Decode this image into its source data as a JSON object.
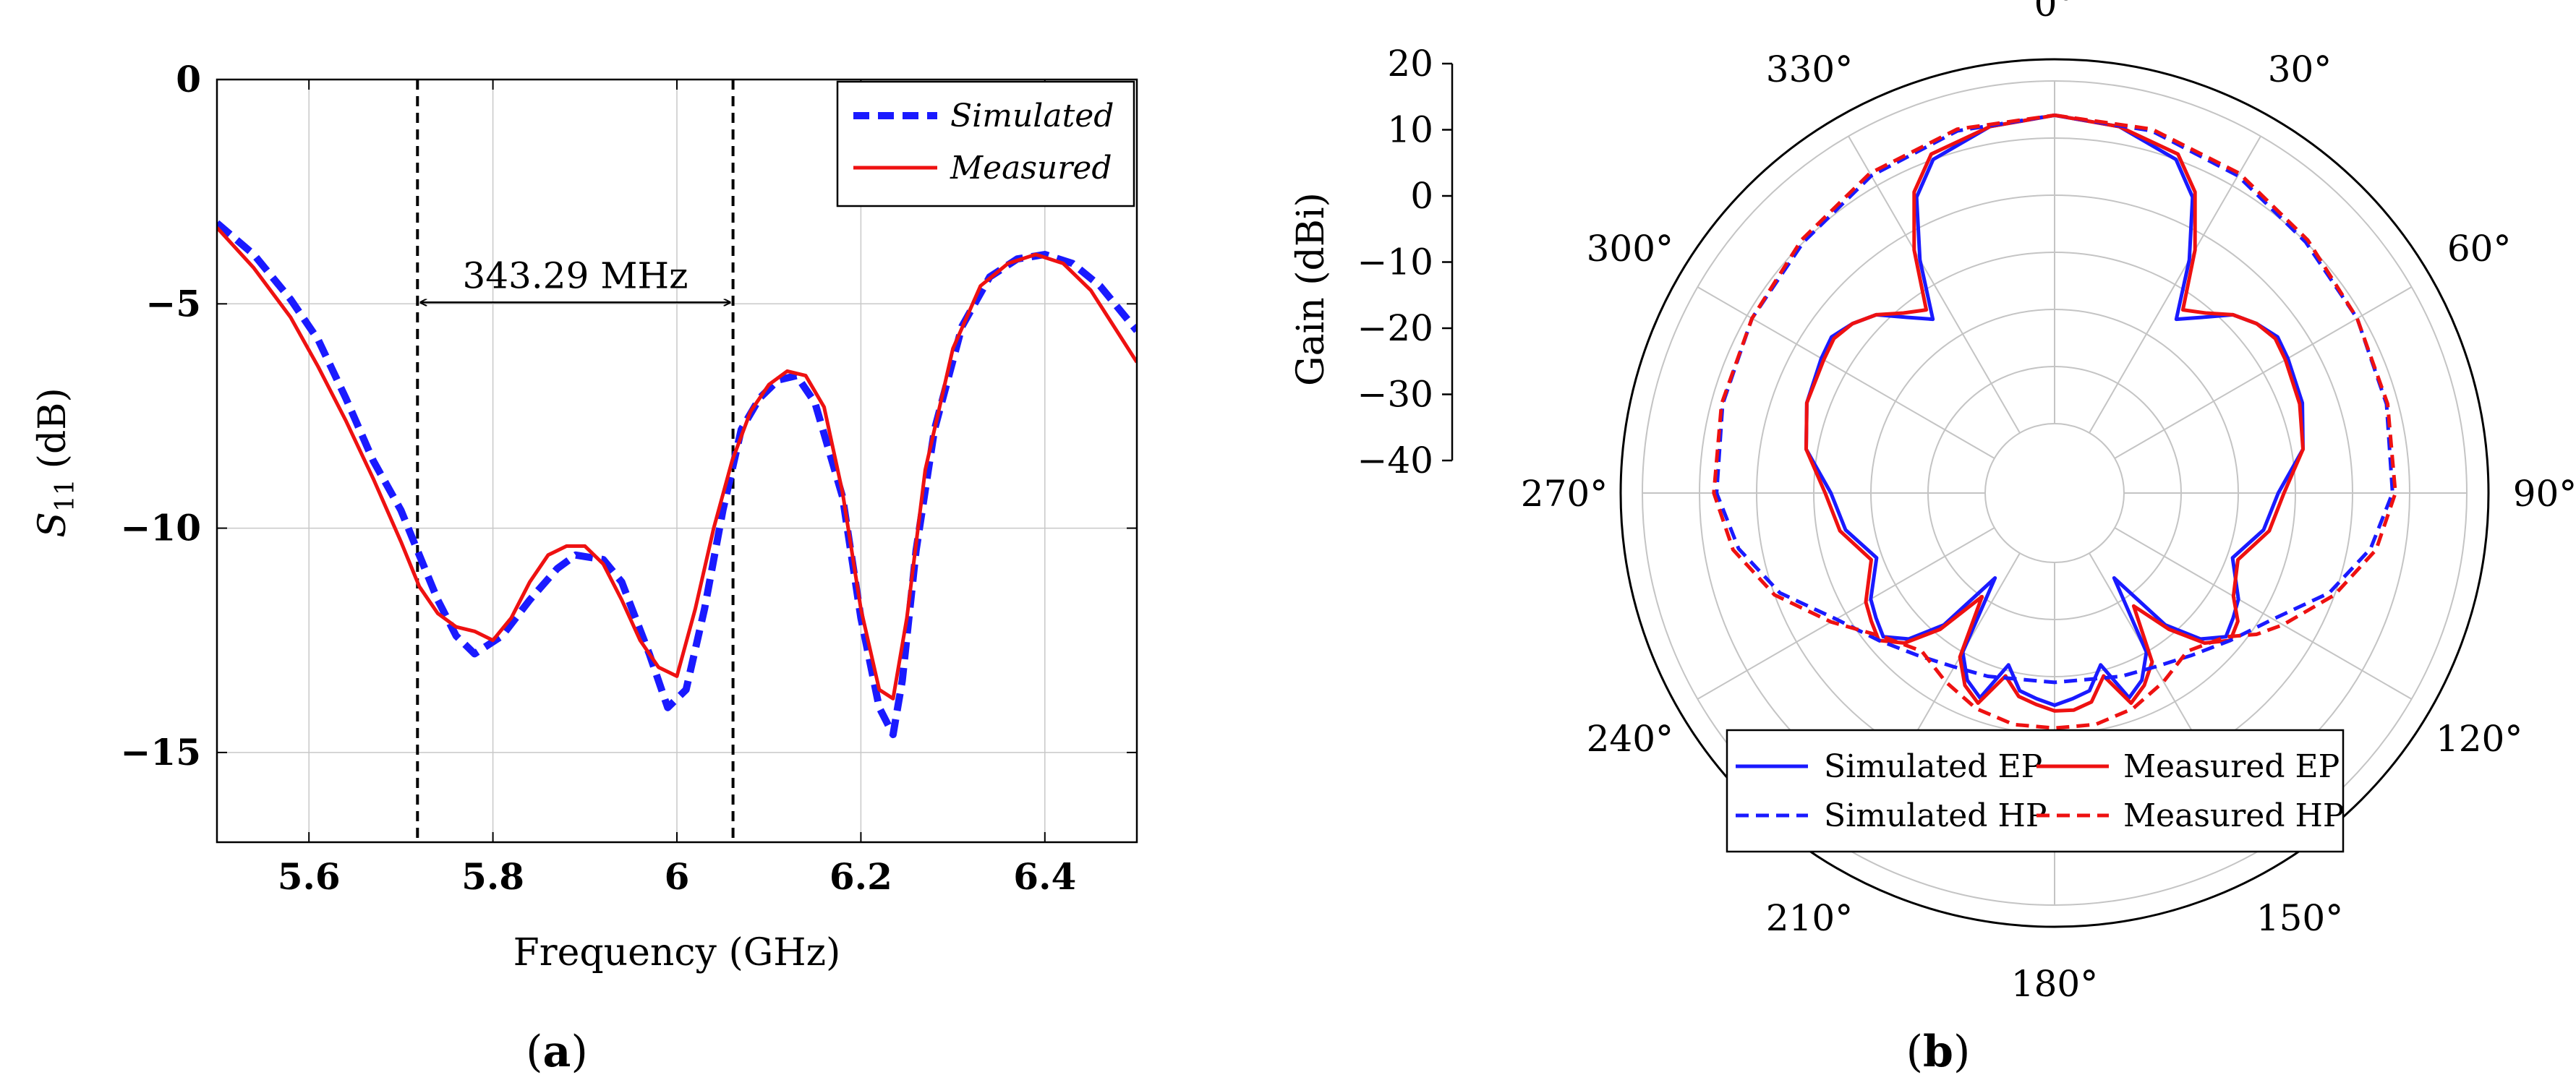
{
  "chart_data": [
    {
      "type": "line",
      "panel_label": "a",
      "xlabel": "Frequency (GHz)",
      "ylabel_main": "S",
      "ylabel_sub": "11",
      "ylabel_unit": "(dB)",
      "xlim": [
        5.5,
        6.5
      ],
      "ylim": [
        -17,
        0
      ],
      "x_ticks": [
        5.6,
        5.8,
        6,
        6.2,
        6.4
      ],
      "x_tick_labels": [
        "5.6",
        "5.8",
        "6",
        "6.2",
        "6.4"
      ],
      "y_ticks": [
        0,
        -5,
        -10,
        -15
      ],
      "y_tick_labels": [
        "0",
        "−5",
        "−10",
        "−15"
      ],
      "grid": true,
      "legend": [
        "Simulated",
        "Measured"
      ],
      "annotation": {
        "text": "343.29 MHz",
        "x_from": 5.718,
        "x_to": 6.061,
        "y": -5
      },
      "vlines": [
        5.718,
        6.061
      ],
      "series": [
        {
          "name": "Simulated",
          "style": "dashed",
          "color": "#1a1aff",
          "x": [
            5.5,
            5.54,
            5.58,
            5.61,
            5.64,
            5.67,
            5.7,
            5.72,
            5.74,
            5.76,
            5.78,
            5.81,
            5.84,
            5.87,
            5.89,
            5.92,
            5.94,
            5.97,
            5.99,
            6.01,
            6.03,
            6.05,
            6.07,
            6.09,
            6.11,
            6.13,
            6.15,
            6.18,
            6.2,
            6.22,
            6.235,
            6.245,
            6.26,
            6.28,
            6.31,
            6.34,
            6.37,
            6.4,
            6.43,
            6.46,
            6.5
          ],
          "y": [
            -3.2,
            -3.9,
            -4.9,
            -5.8,
            -7.1,
            -8.5,
            -9.6,
            -10.6,
            -11.6,
            -12.4,
            -12.8,
            -12.4,
            -11.6,
            -10.9,
            -10.6,
            -10.7,
            -11.2,
            -12.8,
            -14.0,
            -13.6,
            -11.8,
            -9.6,
            -7.8,
            -7.1,
            -6.7,
            -6.6,
            -7.2,
            -9.3,
            -12.0,
            -14.0,
            -14.6,
            -13.4,
            -10.5,
            -7.8,
            -5.5,
            -4.4,
            -4.0,
            -3.9,
            -4.1,
            -4.6,
            -5.6
          ]
        },
        {
          "name": "Measured",
          "style": "solid",
          "color": "#ee1111",
          "x": [
            5.5,
            5.54,
            5.58,
            5.61,
            5.64,
            5.67,
            5.7,
            5.72,
            5.74,
            5.76,
            5.78,
            5.8,
            5.82,
            5.84,
            5.86,
            5.88,
            5.9,
            5.92,
            5.94,
            5.96,
            5.98,
            6.0,
            6.02,
            6.04,
            6.06,
            6.08,
            6.1,
            6.12,
            6.14,
            6.16,
            6.18,
            6.2,
            6.22,
            6.235,
            6.25,
            6.27,
            6.3,
            6.33,
            6.36,
            6.39,
            6.42,
            6.45,
            6.5
          ],
          "y": [
            -3.3,
            -4.2,
            -5.3,
            -6.4,
            -7.6,
            -8.9,
            -10.3,
            -11.3,
            -11.9,
            -12.2,
            -12.3,
            -12.5,
            -12.0,
            -11.2,
            -10.6,
            -10.4,
            -10.4,
            -10.8,
            -11.6,
            -12.5,
            -13.1,
            -13.3,
            -11.8,
            -10.0,
            -8.5,
            -7.4,
            -6.8,
            -6.5,
            -6.6,
            -7.3,
            -9.2,
            -11.8,
            -13.6,
            -13.8,
            -12.0,
            -8.7,
            -6.0,
            -4.6,
            -4.1,
            -3.9,
            -4.1,
            -4.7,
            -6.3
          ]
        }
      ]
    },
    {
      "type": "polar",
      "panel_label": "b",
      "rlabel": "Gain (dBi)",
      "rlim": [
        -40,
        20
      ],
      "r_ticks": [
        20,
        10,
        0,
        -10,
        -20,
        -30,
        -40
      ],
      "r_tick_labels": [
        "20",
        "10",
        "0",
        "−10",
        "−20",
        "−30",
        "−40"
      ],
      "angle_labels": [
        "0°",
        "30°",
        "60°",
        "90°",
        "120°",
        "150°",
        "180°",
        "210°",
        "240°",
        "270°",
        "300°",
        "330°"
      ],
      "legend": [
        "Simulated EP",
        "Measured EP",
        "Simulated HP",
        "Measured HP"
      ],
      "series": [
        {
          "name": "Simulated EP",
          "style": "solid",
          "color": "#1a1aff",
          "angles": [
            0,
            10,
            20,
            25,
            30,
            35,
            40,
            45,
            50,
            55,
            60,
            70,
            80,
            90,
            100,
            110,
            120,
            125,
            130,
            135,
            140,
            145,
            150,
            155,
            160,
            165,
            170,
            175,
            180,
            185,
            190,
            195,
            200,
            205,
            210,
            215,
            220,
            225,
            230,
            235,
            240,
            250,
            260,
            270,
            280,
            290,
            300,
            305,
            310,
            315,
            320,
            325,
            330,
            335,
            340,
            350,
            360
          ],
          "gain": [
            14,
            13,
            10,
            5,
            -5,
            -15,
            -12,
            -8,
            -6,
            -4.5,
            -5,
            -6,
            -8,
            -13,
            -15,
            -19,
            -15,
            -14,
            -13,
            -16,
            -22,
            -34,
            -20,
            -16,
            -14,
            -21,
            -17,
            -16,
            -15,
            -16,
            -17,
            -21,
            -14,
            -16,
            -20,
            -34,
            -22,
            -16,
            -13,
            -14,
            -15,
            -19,
            -15,
            -13,
            -8,
            -6,
            -5,
            -4.5,
            -6,
            -8,
            -12,
            -15,
            -5,
            5,
            10,
            13,
            14
          ]
        },
        {
          "name": "Measured EP",
          "style": "solid",
          "color": "#ee1111",
          "angles": [
            0,
            10,
            20,
            25,
            30,
            35,
            40,
            45,
            50,
            55,
            60,
            70,
            80,
            90,
            100,
            110,
            120,
            125,
            130,
            135,
            140,
            145,
            150,
            155,
            160,
            165,
            170,
            175,
            180,
            185,
            190,
            195,
            200,
            205,
            210,
            215,
            220,
            225,
            230,
            235,
            240,
            250,
            260,
            270,
            280,
            290,
            300,
            305,
            310,
            315,
            320,
            325,
            330,
            335,
            340,
            350,
            360
          ],
          "gain": [
            14,
            13,
            11,
            6,
            -3,
            -13,
            -11,
            -8,
            -6,
            -5,
            -5.5,
            -6.5,
            -8,
            -12,
            -14,
            -18,
            -16,
            -13,
            -12,
            -15,
            -21,
            -28,
            -18,
            -15,
            -13,
            -19,
            -15,
            -14,
            -14,
            -15,
            -16,
            -19,
            -13,
            -15,
            -19,
            -30,
            -21,
            -15,
            -12,
            -13,
            -14,
            -18,
            -14,
            -12,
            -8,
            -6,
            -5.5,
            -5,
            -6,
            -8,
            -11,
            -13,
            -3,
            6,
            11,
            13,
            14
          ]
        },
        {
          "name": "Simulated HP",
          "style": "dashed",
          "color": "#1a1aff",
          "angles": [
            0,
            15,
            30,
            45,
            60,
            75,
            90,
            100,
            110,
            120,
            130,
            140,
            150,
            160,
            170,
            180,
            190,
            200,
            210,
            220,
            230,
            240,
            250,
            260,
            270,
            285,
            300,
            315,
            330,
            345,
            360
          ],
          "gain": [
            14,
            13.5,
            12,
            10,
            9,
            8,
            7,
            4,
            -1,
            -8,
            -12,
            -15,
            -17,
            -18,
            -19,
            -19,
            -19,
            -18,
            -17,
            -15,
            -12,
            -8,
            -1,
            4,
            7,
            8,
            9,
            10,
            12,
            13.5,
            14
          ]
        },
        {
          "name": "Measured HP",
          "style": "dashed",
          "color": "#ee1111",
          "angles": [
            0,
            15,
            30,
            45,
            60,
            75,
            90,
            100,
            110,
            120,
            125,
            130,
            140,
            150,
            160,
            170,
            180,
            190,
            200,
            210,
            220,
            230,
            240,
            250,
            260,
            270,
            285,
            300,
            315,
            330,
            345,
            360
          ],
          "gain": [
            14,
            13.8,
            12.5,
            10.5,
            9,
            8.2,
            7.5,
            5,
            0,
            -6,
            -9,
            -13,
            -16,
            -14,
            -12,
            -11,
            -11,
            -11,
            -12,
            -14,
            -16,
            -13,
            -7,
            0,
            5,
            7.5,
            8.2,
            9,
            10.5,
            12.5,
            13.8,
            14
          ]
        }
      ]
    }
  ]
}
